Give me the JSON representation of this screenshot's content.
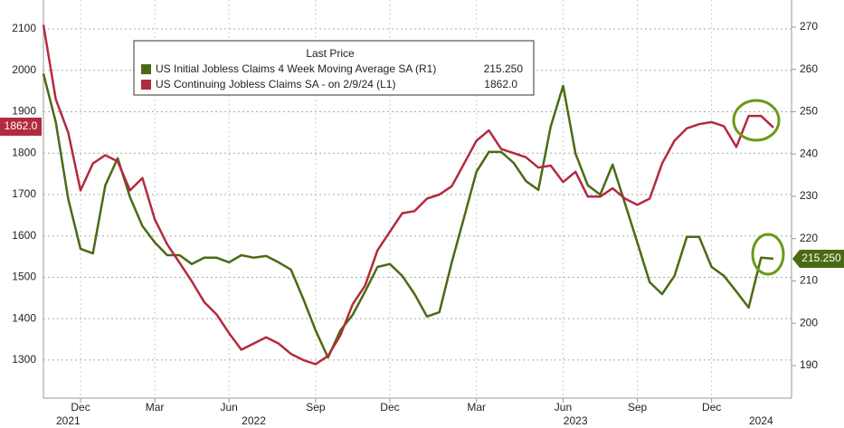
{
  "chart_data": {
    "type": "line",
    "legend_title": "Last Price",
    "categories": [
      null,
      null,
      null,
      "Dec",
      null,
      null,
      null,
      null,
      null,
      "Mar",
      null,
      null,
      null,
      null,
      null,
      "Jun",
      null,
      null,
      null,
      null,
      null,
      null,
      "Sep",
      null,
      null,
      null,
      null,
      null,
      "Dec",
      null,
      null,
      null,
      null,
      null,
      null,
      "Mar",
      null,
      null,
      null,
      null,
      null,
      null,
      "Jun",
      null,
      null,
      null,
      null,
      null,
      "Sep",
      null,
      null,
      null,
      null,
      null,
      "Dec",
      null,
      null,
      null,
      null,
      null
    ],
    "years": [
      null,
      null,
      "2021",
      null,
      null,
      null,
      null,
      null,
      null,
      null,
      null,
      null,
      null,
      null,
      null,
      null,
      null,
      "2022",
      null,
      null,
      null,
      null,
      null,
      null,
      null,
      null,
      null,
      null,
      null,
      null,
      null,
      null,
      null,
      null,
      null,
      null,
      null,
      null,
      null,
      null,
      null,
      null,
      null,
      "2023",
      null,
      null,
      null,
      null,
      null,
      null,
      null,
      null,
      null,
      null,
      null,
      null,
      null,
      null,
      "2024",
      null
    ],
    "series": [
      {
        "name": "US Initial Jobless Claims 4 Week Moving Average SA  (R1)",
        "color": "#4b6a14",
        "axis": "y2",
        "last_label": "215.250",
        "values": [
          259,
          247.5,
          229.4,
          217.6,
          216.5,
          232.6,
          239,
          229.8,
          223,
          219.1,
          216.1,
          216.1,
          214,
          215.5,
          215.5,
          214.4,
          216.1,
          215.5,
          215.9,
          214.4,
          212.7,
          205.8,
          198.3,
          191.9,
          198.3,
          202,
          207.5,
          213.3,
          214,
          211.2,
          206.9,
          201.6,
          202.6,
          214.4,
          225.1,
          235.8,
          240.5,
          240.5,
          237.9,
          233.6,
          231.5,
          246.5,
          256.1,
          240.1,
          232.6,
          230.4,
          237.5,
          228.3,
          219.1,
          209.7,
          206.9,
          211.2,
          220.4,
          220.4,
          213.3,
          211.2,
          207.5,
          203.7,
          215.5,
          215.25
        ]
      },
      {
        "name": "US Continuing Jobless Claims SA -  on 2/9/24  (L1)",
        "color": "#b32a3e",
        "axis": "y",
        "last_label": "1862.0",
        "values": [
          2110,
          1930,
          1850,
          1710,
          1775,
          1795,
          1780,
          1710,
          1740,
          1640,
          1580,
          1535,
          1490,
          1440,
          1410,
          1365,
          1325,
          1340,
          1355,
          1340,
          1315,
          1300,
          1290,
          1310,
          1360,
          1435,
          1480,
          1565,
          1610,
          1655,
          1660,
          1690,
          1700,
          1720,
          1775,
          1830,
          1855,
          1810,
          1800,
          1790,
          1765,
          1770,
          1730,
          1755,
          1695,
          1695,
          1715,
          1690,
          1675,
          1690,
          1775,
          1830,
          1860,
          1870,
          1875,
          1865,
          1815,
          1890,
          1890,
          1862
        ]
      }
    ],
    "ylim": [
      1208,
      2170
    ],
    "yticks": [
      1300,
      1400,
      1500,
      1600,
      1700,
      1800,
      1900,
      2000,
      2100
    ],
    "y2lim": [
      182.3,
      276.4
    ],
    "y2ticks": [
      190,
      200,
      210,
      220,
      230,
      240,
      250,
      260,
      270
    ],
    "grid": true
  }
}
